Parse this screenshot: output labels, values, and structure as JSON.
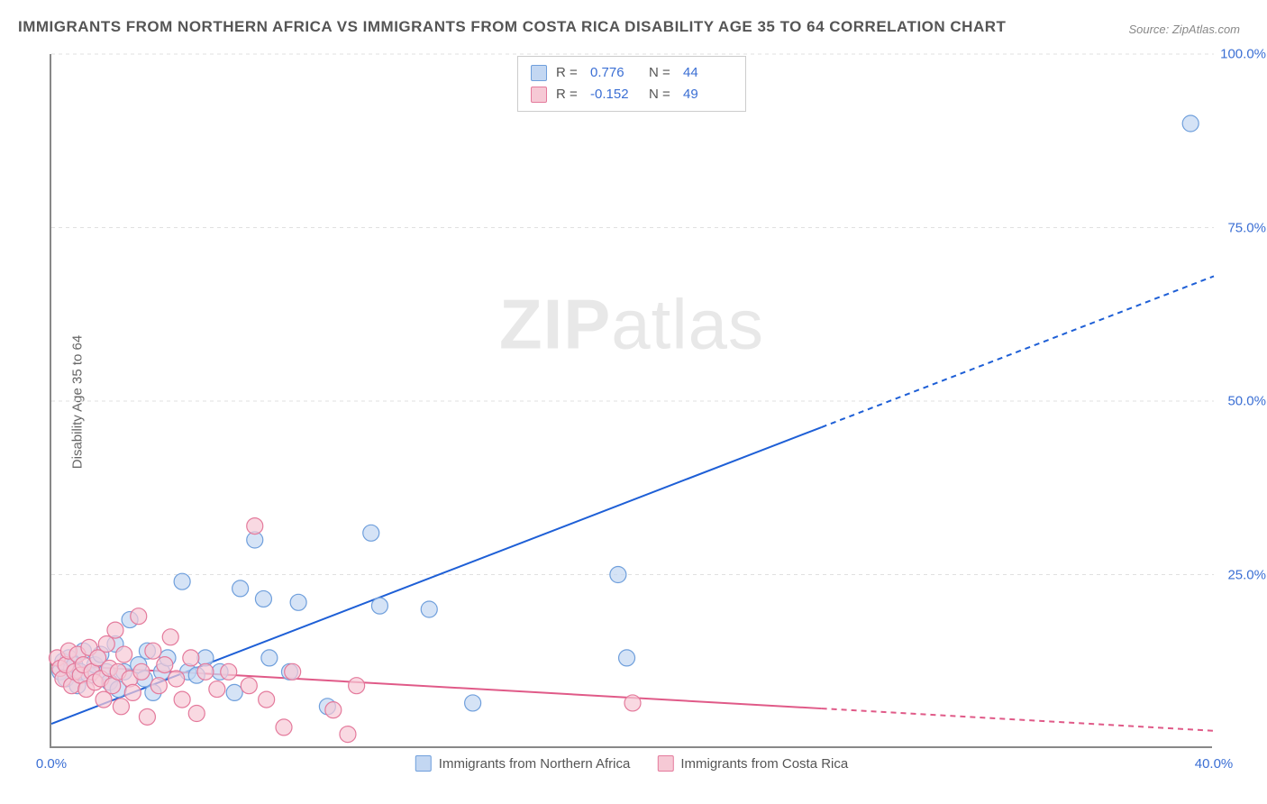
{
  "title": "IMMIGRANTS FROM NORTHERN AFRICA VS IMMIGRANTS FROM COSTA RICA DISABILITY AGE 35 TO 64 CORRELATION CHART",
  "source": "Source: ZipAtlas.com",
  "watermark_bold": "ZIP",
  "watermark_rest": "atlas",
  "y_axis_label": "Disability Age 35 to 64",
  "chart": {
    "type": "scatter",
    "xlim": [
      0,
      40
    ],
    "ylim": [
      0,
      100
    ],
    "background_color": "#ffffff",
    "grid_color": "#e0e0e0",
    "axis_color": "#888888",
    "tick_label_color": "#3b6fd4",
    "tick_fontsize": 15,
    "title_fontsize": 17,
    "title_color": "#555555",
    "yticks": [
      {
        "value": 25,
        "label": "25.0%"
      },
      {
        "value": 50,
        "label": "50.0%"
      },
      {
        "value": 75,
        "label": "75.0%"
      },
      {
        "value": 100,
        "label": "100.0%"
      }
    ],
    "xticks": [
      {
        "value": 0,
        "label": "0.0%"
      },
      {
        "value": 40,
        "label": "40.0%"
      }
    ],
    "series": [
      {
        "name": "Immigrants from Northern Africa",
        "color_fill": "#c3d7f2",
        "color_stroke": "#6f9fdc",
        "marker": "circle",
        "marker_size": 9,
        "marker_opacity": 0.7,
        "R": "0.776",
        "N": "44",
        "regression": {
          "color": "#1e5fd6",
          "width": 2,
          "dash_after_last_x": 26.5,
          "x1": 0,
          "y1": 3.5,
          "x2": 40,
          "y2": 68
        },
        "points": [
          [
            0.3,
            11
          ],
          [
            0.4,
            12.5
          ],
          [
            0.5,
            10
          ],
          [
            0.6,
            13
          ],
          [
            0.7,
            11.5
          ],
          [
            0.8,
            12
          ],
          [
            0.9,
            9
          ],
          [
            1.0,
            11
          ],
          [
            1.1,
            14
          ],
          [
            1.3,
            10.5
          ],
          [
            1.5,
            12
          ],
          [
            1.7,
            13.5
          ],
          [
            1.9,
            11
          ],
          [
            2.0,
            9.5
          ],
          [
            2.2,
            15
          ],
          [
            2.3,
            8.5
          ],
          [
            2.5,
            11
          ],
          [
            2.7,
            18.5
          ],
          [
            3.0,
            12
          ],
          [
            3.2,
            10
          ],
          [
            3.3,
            14
          ],
          [
            3.5,
            8
          ],
          [
            3.8,
            11
          ],
          [
            4.0,
            13
          ],
          [
            4.5,
            24
          ],
          [
            4.7,
            11
          ],
          [
            5.0,
            10.5
          ],
          [
            5.3,
            13
          ],
          [
            5.8,
            11
          ],
          [
            6.3,
            8
          ],
          [
            6.5,
            23
          ],
          [
            7.0,
            30
          ],
          [
            7.3,
            21.5
          ],
          [
            7.5,
            13
          ],
          [
            8.2,
            11
          ],
          [
            8.5,
            21
          ],
          [
            9.5,
            6
          ],
          [
            11.0,
            31
          ],
          [
            11.3,
            20.5
          ],
          [
            13.0,
            20
          ],
          [
            14.5,
            6.5
          ],
          [
            19.5,
            25
          ],
          [
            19.8,
            13
          ],
          [
            39.2,
            90
          ]
        ]
      },
      {
        "name": "Immigrants from Costa Rica",
        "color_fill": "#f6c9d5",
        "color_stroke": "#e47a9c",
        "marker": "circle",
        "marker_size": 9,
        "marker_opacity": 0.7,
        "R": "-0.152",
        "N": "49",
        "regression": {
          "color": "#e05a88",
          "width": 2,
          "dash_after_last_x": 26.5,
          "x1": 0,
          "y1": 12,
          "x2": 40,
          "y2": 2.5
        },
        "points": [
          [
            0.2,
            13
          ],
          [
            0.3,
            11.5
          ],
          [
            0.4,
            10
          ],
          [
            0.5,
            12
          ],
          [
            0.6,
            14
          ],
          [
            0.7,
            9
          ],
          [
            0.8,
            11
          ],
          [
            0.9,
            13.5
          ],
          [
            1.0,
            10.5
          ],
          [
            1.1,
            12
          ],
          [
            1.2,
            8.5
          ],
          [
            1.3,
            14.5
          ],
          [
            1.4,
            11
          ],
          [
            1.5,
            9.5
          ],
          [
            1.6,
            13
          ],
          [
            1.7,
            10
          ],
          [
            1.8,
            7
          ],
          [
            1.9,
            15
          ],
          [
            2.0,
            11.5
          ],
          [
            2.1,
            9
          ],
          [
            2.2,
            17
          ],
          [
            2.3,
            11
          ],
          [
            2.4,
            6
          ],
          [
            2.5,
            13.5
          ],
          [
            2.7,
            10
          ],
          [
            2.8,
            8
          ],
          [
            3.0,
            19
          ],
          [
            3.1,
            11
          ],
          [
            3.3,
            4.5
          ],
          [
            3.5,
            14
          ],
          [
            3.7,
            9
          ],
          [
            3.9,
            12
          ],
          [
            4.1,
            16
          ],
          [
            4.3,
            10
          ],
          [
            4.5,
            7
          ],
          [
            4.8,
            13
          ],
          [
            5.0,
            5
          ],
          [
            5.3,
            11
          ],
          [
            5.7,
            8.5
          ],
          [
            6.1,
            11
          ],
          [
            6.8,
            9
          ],
          [
            7.0,
            32
          ],
          [
            7.4,
            7
          ],
          [
            8.0,
            3
          ],
          [
            8.3,
            11
          ],
          [
            9.7,
            5.5
          ],
          [
            10.2,
            2
          ],
          [
            10.5,
            9
          ],
          [
            20.0,
            6.5
          ]
        ]
      }
    ],
    "bottom_legend": [
      {
        "label": "Immigrants from Northern Africa",
        "fill": "#c3d7f2",
        "stroke": "#6f9fdc"
      },
      {
        "label": "Immigrants from Costa Rica",
        "fill": "#f6c9d5",
        "stroke": "#e47a9c"
      }
    ]
  }
}
